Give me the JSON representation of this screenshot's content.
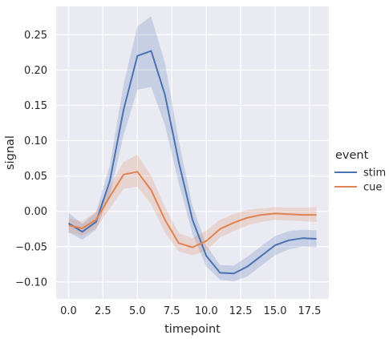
{
  "chart_data": {
    "type": "line",
    "xlabel": "timepoint",
    "ylabel": "signal",
    "xlim": [
      -0.9,
      18.9
    ],
    "ylim": [
      -0.124,
      0.29
    ],
    "xticks": [
      0.0,
      2.5,
      5.0,
      7.5,
      10.0,
      12.5,
      15.0,
      17.5
    ],
    "xtick_labels": [
      "0.0",
      "2.5",
      "5.0",
      "7.5",
      "10.0",
      "12.5",
      "15.0",
      "17.5"
    ],
    "yticks": [
      -0.1,
      -0.05,
      0.0,
      0.05,
      0.1,
      0.15,
      0.2,
      0.25
    ],
    "ytick_labels": [
      "−0.10",
      "−0.05",
      "0.00",
      "0.05",
      "0.10",
      "0.15",
      "0.20",
      "0.25"
    ],
    "grid": true,
    "legend": {
      "title": "event",
      "placement": "right"
    },
    "x": [
      0,
      1,
      2,
      3,
      4,
      5,
      6,
      7,
      8,
      9,
      10,
      11,
      12,
      13,
      14,
      15,
      16,
      17,
      18
    ],
    "series": [
      {
        "name": "stim",
        "color": "#4c72b0",
        "values": [
          -0.017,
          -0.029,
          -0.015,
          0.043,
          0.144,
          0.22,
          0.227,
          0.165,
          0.07,
          -0.012,
          -0.063,
          -0.087,
          -0.088,
          -0.078,
          -0.063,
          -0.048,
          -0.041,
          -0.038,
          -0.039
        ],
        "ci_low": [
          -0.03,
          -0.04,
          -0.026,
          0.022,
          0.108,
          0.172,
          0.176,
          0.122,
          0.04,
          -0.032,
          -0.078,
          -0.097,
          -0.099,
          -0.092,
          -0.077,
          -0.062,
          -0.054,
          -0.05,
          -0.051
        ],
        "ci_high": [
          -0.002,
          -0.018,
          -0.002,
          0.065,
          0.18,
          0.262,
          0.276,
          0.21,
          0.1,
          0.008,
          -0.048,
          -0.076,
          -0.077,
          -0.064,
          -0.049,
          -0.035,
          -0.028,
          -0.026,
          -0.027
        ]
      },
      {
        "name": "cue",
        "color": "#dd8452",
        "values": [
          -0.02,
          -0.024,
          -0.012,
          0.021,
          0.052,
          0.056,
          0.03,
          -0.012,
          -0.045,
          -0.051,
          -0.042,
          -0.025,
          -0.016,
          -0.009,
          -0.005,
          -0.003,
          -0.004,
          -0.005,
          -0.005
        ],
        "ci_low": [
          -0.03,
          -0.034,
          -0.024,
          0.004,
          0.032,
          0.035,
          0.01,
          -0.03,
          -0.057,
          -0.062,
          -0.056,
          -0.037,
          -0.028,
          -0.02,
          -0.015,
          -0.012,
          -0.013,
          -0.014,
          -0.015
        ],
        "ci_high": [
          -0.01,
          -0.014,
          0.0,
          0.036,
          0.07,
          0.08,
          0.05,
          0.006,
          -0.031,
          -0.038,
          -0.027,
          -0.012,
          -0.004,
          0.002,
          0.004,
          0.006,
          0.005,
          0.005,
          0.006
        ]
      }
    ]
  }
}
